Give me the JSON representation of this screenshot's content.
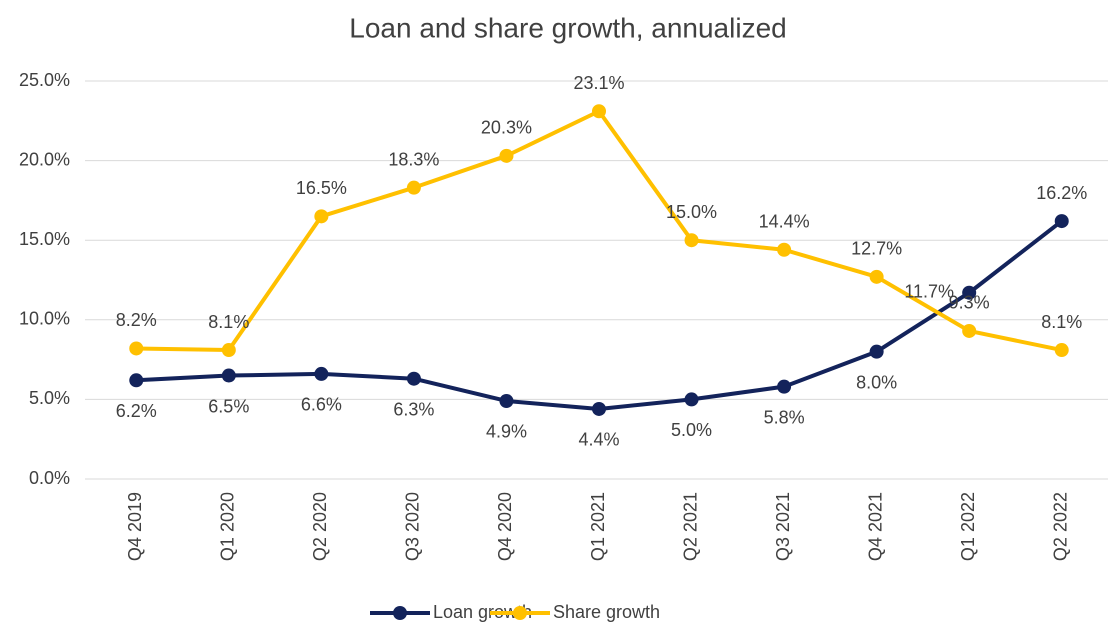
{
  "chart_data": {
    "type": "line",
    "title": "Loan and share growth, annualized",
    "categories": [
      "Q4 2019",
      "Q1 2020",
      "Q2 2020",
      "Q3 2020",
      "Q4 2020",
      "Q1 2021",
      "Q2 2021",
      "Q3 2021",
      "Q4 2021",
      "Q1 2022",
      "Q2 2022"
    ],
    "series": [
      {
        "name": "Loan growth",
        "color": "#13235b",
        "values": [
          6.2,
          6.5,
          6.6,
          6.3,
          4.9,
          4.4,
          5.0,
          5.8,
          8.0,
          11.7,
          16.2
        ],
        "value_labels": [
          "6.2%",
          "6.5%",
          "6.6%",
          "6.3%",
          "4.9%",
          "4.4%",
          "5.0%",
          "5.8%",
          "8.0%",
          "11.7%",
          "16.2%"
        ]
      },
      {
        "name": "Share growth",
        "color": "#ffc000",
        "values": [
          8.2,
          8.1,
          16.5,
          18.3,
          20.3,
          23.1,
          15.0,
          14.4,
          12.7,
          9.3,
          8.1
        ],
        "value_labels": [
          "8.2%",
          "8.1%",
          "16.5%",
          "18.3%",
          "20.3%",
          "23.1%",
          "15.0%",
          "14.4%",
          "12.7%",
          "9.3%",
          "8.1%"
        ]
      }
    ],
    "ylim": [
      0,
      25
    ],
    "yticks": [
      {
        "value": 0,
        "label": "0.0%"
      },
      {
        "value": 5,
        "label": "5.0%"
      },
      {
        "value": 10,
        "label": "10.0%"
      },
      {
        "value": 15,
        "label": "15.0%"
      },
      {
        "value": 20,
        "label": "20.0%"
      },
      {
        "value": 25,
        "label": "25.0%"
      }
    ],
    "grid": true,
    "legend": "bottom"
  }
}
